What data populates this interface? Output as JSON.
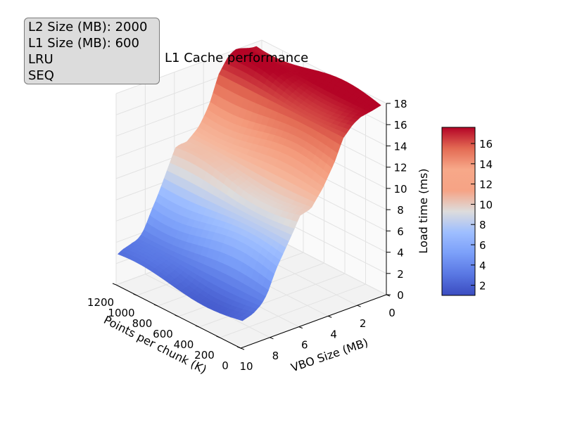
{
  "info_box": {
    "lines": [
      "L2 Size (MB): 2000",
      "L1 Size (MB): 600",
      "LRU",
      "SEQ"
    ]
  },
  "chart_data": {
    "type": "surface",
    "title": "L1 Cache performance",
    "xlabel": "Points per chunk (K)",
    "ylabel": "VBO Size (MB)",
    "zlabel": "Load time (ms)",
    "xlim": [
      0,
      1200
    ],
    "ylim": [
      0,
      10
    ],
    "zlim": [
      0,
      18
    ],
    "x_ticks": [
      0,
      200,
      400,
      600,
      800,
      1000,
      1200
    ],
    "y_ticks": [
      0,
      2,
      4,
      6,
      8,
      10
    ],
    "z_ticks": [
      0,
      2,
      4,
      6,
      8,
      10,
      12,
      14,
      16,
      18
    ],
    "grid": true,
    "colormap": "coolwarm",
    "colorbar": {
      "min": 1.0,
      "max": 17.6,
      "ticks": [
        2,
        4,
        6,
        8,
        10,
        12,
        14,
        16
      ]
    },
    "surface_profile_along_vbo": {
      "vbo_size_mb": [
        0.2,
        0.8,
        1.6,
        2.1,
        2.8,
        3.4,
        4.2,
        5.0,
        5.8,
        6.0,
        6.6,
        7.4,
        8.0,
        8.4,
        9.0,
        9.7
      ],
      "load_time_ms": [
        17.8,
        17.6,
        17.4,
        17.0,
        16.0,
        14.0,
        12.0,
        10.5,
        10.2,
        9.5,
        8.0,
        6.0,
        4.0,
        3.2,
        2.6,
        2.3
      ]
    },
    "surface_points_per_chunk_k": [
      25,
      1225
    ],
    "surface_variation_along_points_ms": 0.6
  }
}
